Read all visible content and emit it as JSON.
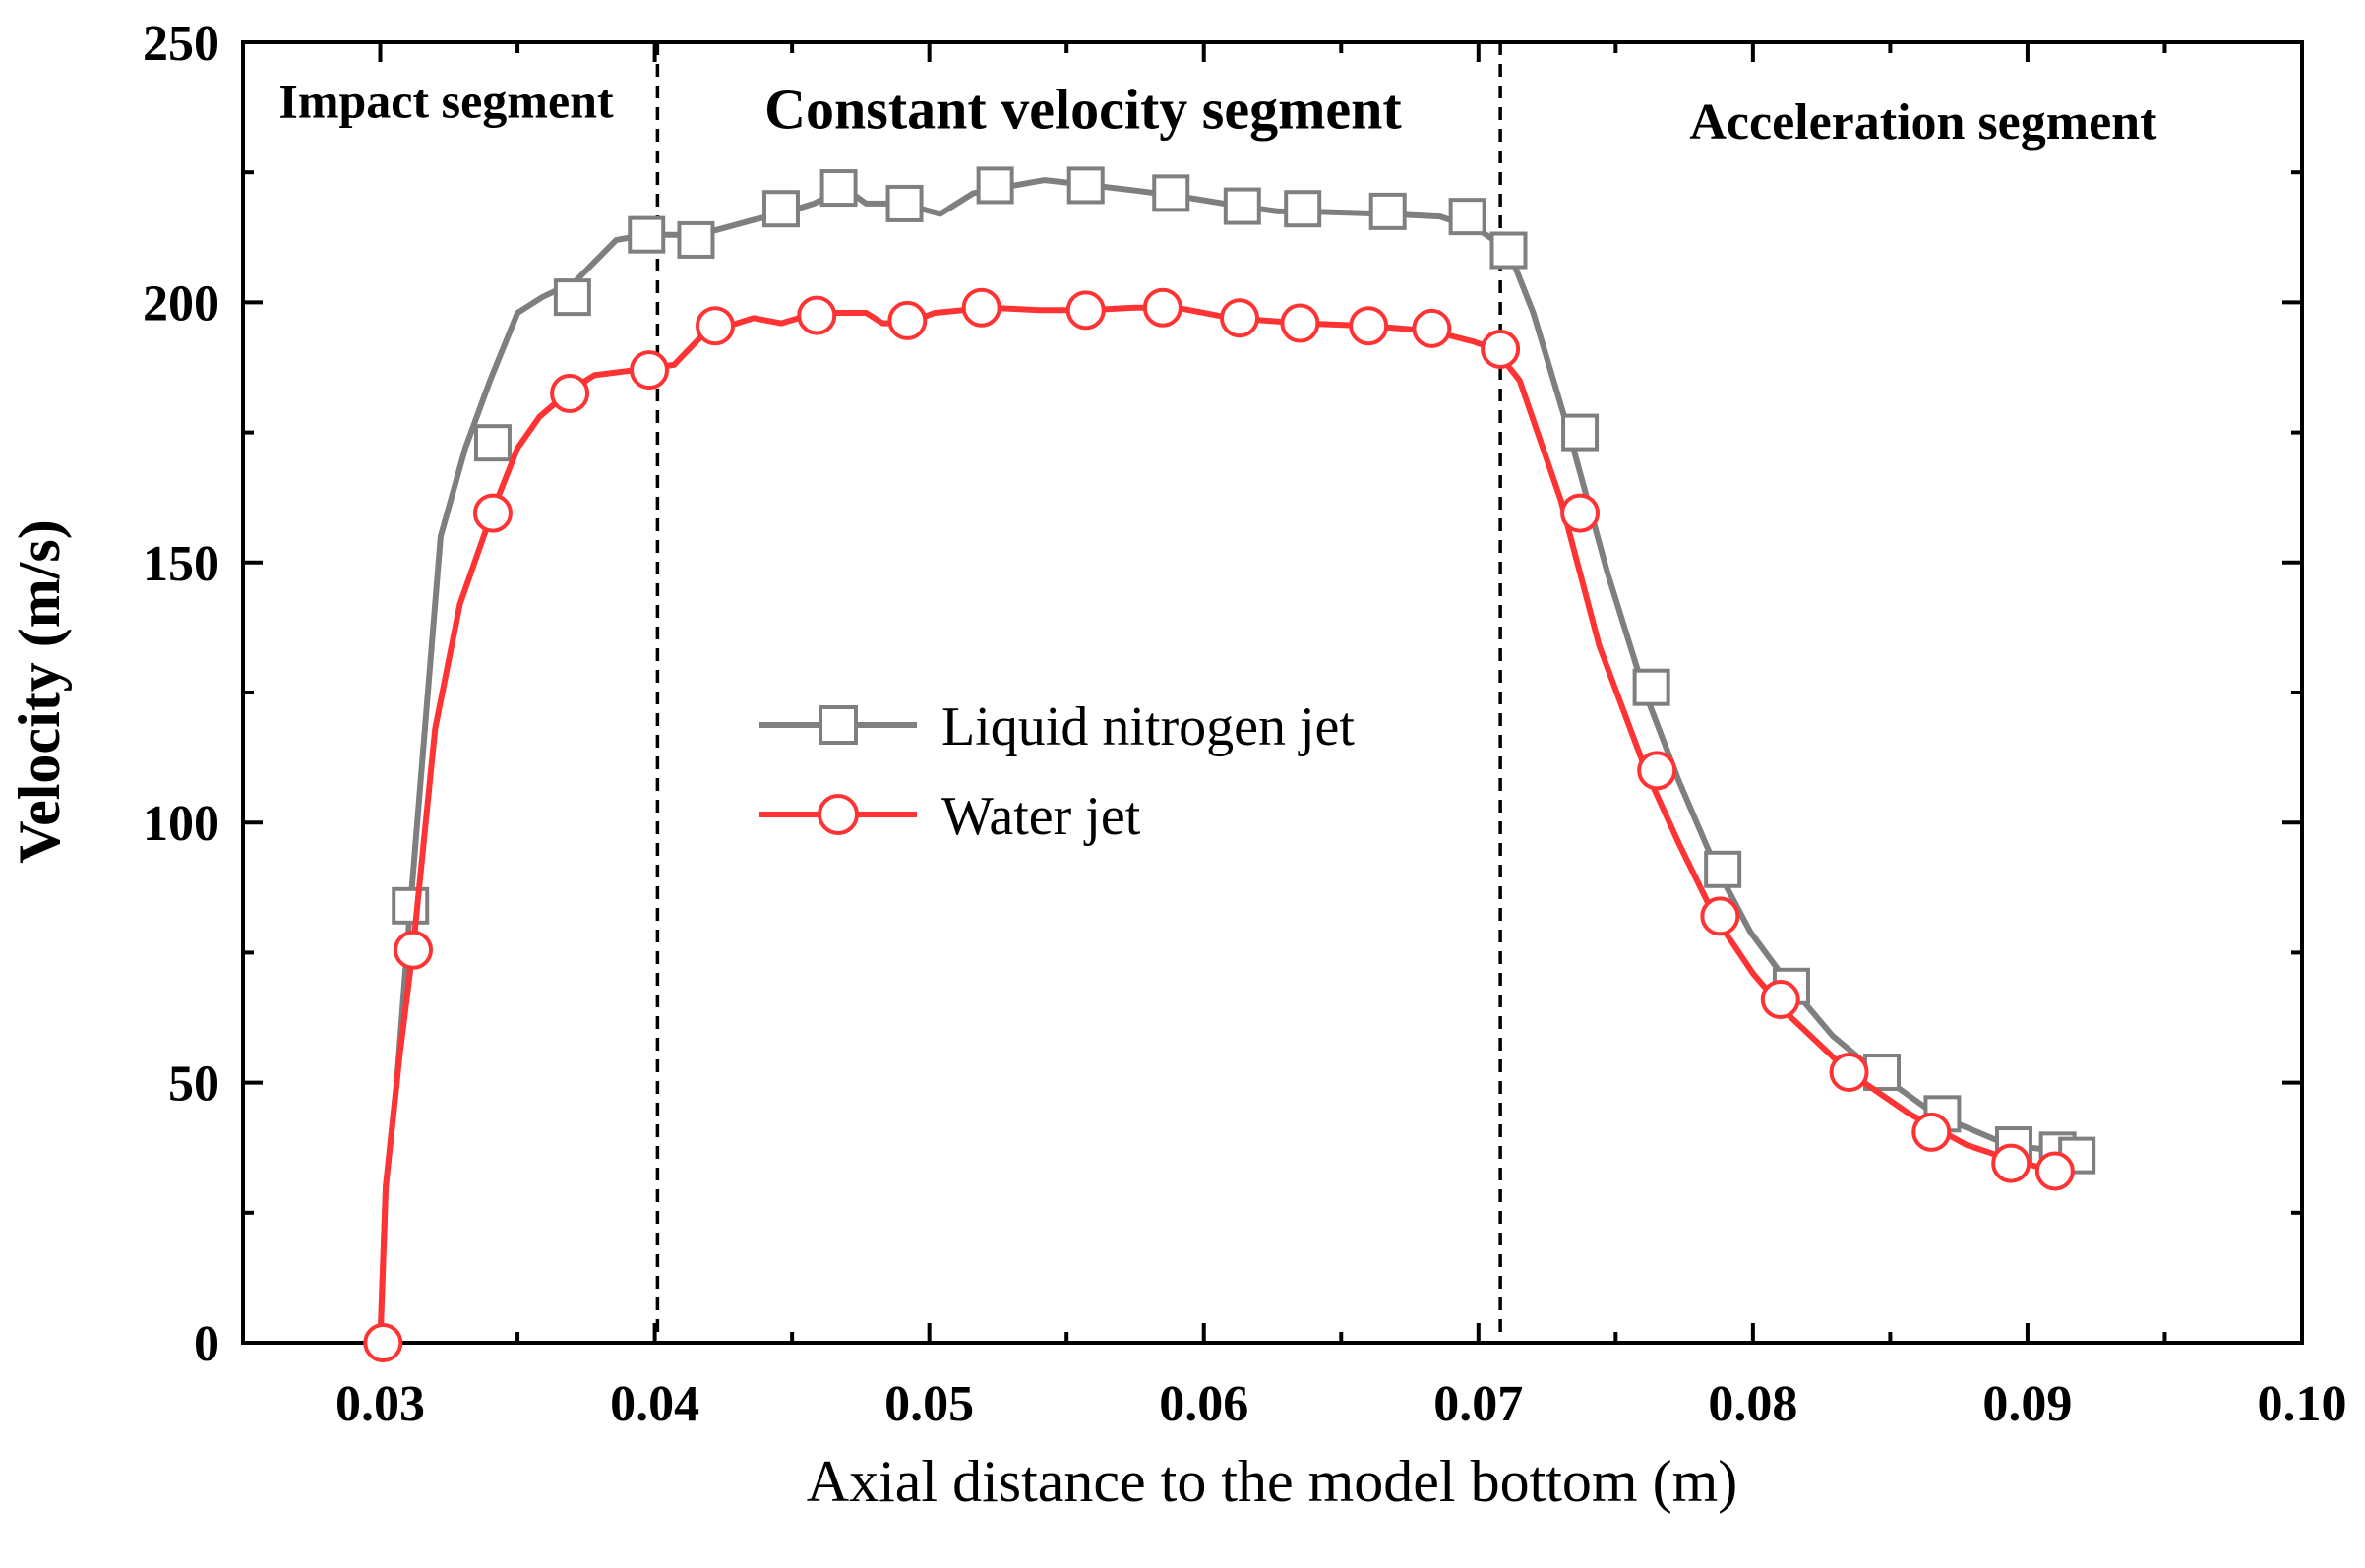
{
  "chart_data": {
    "type": "line",
    "title": "",
    "xlabel": "Axial distance to the model bottom (m)",
    "ylabel": "Velocity (m/s)",
    "xlim": [
      0.025,
      0.1
    ],
    "ylim": [
      0,
      250
    ],
    "xticks": [
      "0.03",
      "0.04",
      "0.05",
      "0.06",
      "0.07",
      "0.08",
      "0.09",
      "0.10"
    ],
    "xtick_values": [
      0.03,
      0.04,
      0.05,
      0.06,
      0.07,
      0.08,
      0.09,
      0.1
    ],
    "yticks": [
      "0",
      "50",
      "100",
      "150",
      "200",
      "250"
    ],
    "ytick_values": [
      0,
      50,
      100,
      150,
      200,
      250
    ],
    "grid": false,
    "legend_position": "center",
    "dividers": [
      0.0401,
      0.0708
    ],
    "segments": [
      {
        "label": "Impact segment",
        "x": 0.0324,
        "y": 235.5,
        "size": "small"
      },
      {
        "label": "Constant velocity segment",
        "x": 0.0556,
        "y": 233.5,
        "size": "large"
      },
      {
        "label": "Acceleration segment",
        "x": 0.0862,
        "y": 231.5,
        "size": "small"
      }
    ],
    "series": [
      {
        "name": "Liquid nitrogen jet",
        "color": "#7f7f7f",
        "marker": "square",
        "line": [
          [
            0.03,
            0.0
          ],
          [
            0.0302,
            30
          ],
          [
            0.0306,
            50
          ],
          [
            0.0311,
            84
          ],
          [
            0.0322,
            155
          ],
          [
            0.0331,
            172
          ],
          [
            0.034,
            185
          ],
          [
            0.035,
            198
          ],
          [
            0.0359,
            201
          ],
          [
            0.0371,
            204
          ],
          [
            0.0386,
            212
          ],
          [
            0.0397,
            213
          ],
          [
            0.0416,
            213
          ],
          [
            0.043,
            215
          ],
          [
            0.0437,
            216
          ],
          [
            0.0446,
            217
          ],
          [
            0.0458,
            219
          ],
          [
            0.0469,
            222
          ],
          [
            0.0477,
            219
          ],
          [
            0.049,
            219
          ],
          [
            0.0504,
            217
          ],
          [
            0.0516,
            221
          ],
          [
            0.0526,
            222
          ],
          [
            0.0542,
            223.5
          ],
          [
            0.0559,
            222.5
          ],
          [
            0.0575,
            221.5
          ],
          [
            0.059,
            220.5
          ],
          [
            0.0613,
            218.5
          ],
          [
            0.0627,
            217.5
          ],
          [
            0.0637,
            217.5
          ],
          [
            0.0667,
            217
          ],
          [
            0.0686,
            216.5
          ],
          [
            0.07,
            214
          ],
          [
            0.0711,
            210
          ],
          [
            0.072,
            198
          ],
          [
            0.0733,
            175
          ],
          [
            0.0747,
            148
          ],
          [
            0.076,
            126
          ],
          [
            0.0773,
            108
          ],
          [
            0.0786,
            92
          ],
          [
            0.0799,
            79
          ],
          [
            0.0813,
            69
          ],
          [
            0.0829,
            59
          ],
          [
            0.0845,
            52
          ],
          [
            0.0866,
            44
          ],
          [
            0.0893,
            38
          ],
          [
            0.0909,
            37
          ],
          [
            0.0915,
            36
          ]
        ],
        "markers": [
          [
            0.0311,
            84
          ],
          [
            0.0341,
            173
          ],
          [
            0.037,
            201
          ],
          [
            0.0397,
            213
          ],
          [
            0.0415,
            212
          ],
          [
            0.0446,
            218
          ],
          [
            0.0467,
            222
          ],
          [
            0.0491,
            219
          ],
          [
            0.0524,
            222.5
          ],
          [
            0.0557,
            222.5
          ],
          [
            0.0588,
            221
          ],
          [
            0.0614,
            218.5
          ],
          [
            0.0636,
            218
          ],
          [
            0.0667,
            217.5
          ],
          [
            0.0696,
            216.5
          ],
          [
            0.0711,
            210
          ],
          [
            0.0737,
            175
          ],
          [
            0.0763,
            126
          ],
          [
            0.0789,
            91
          ],
          [
            0.0814,
            68.5
          ],
          [
            0.0847,
            52
          ],
          [
            0.0869,
            44
          ],
          [
            0.0895,
            38
          ],
          [
            0.0911,
            37
          ],
          [
            0.0918,
            36
          ]
        ]
      },
      {
        "name": "Water jet",
        "color": "#ff3333",
        "marker": "circle",
        "line": [
          [
            0.03,
            0.0
          ],
          [
            0.0302,
            30
          ],
          [
            0.0307,
            55
          ],
          [
            0.0312,
            76
          ],
          [
            0.032,
            118
          ],
          [
            0.0329,
            142
          ],
          [
            0.0341,
            160
          ],
          [
            0.035,
            172
          ],
          [
            0.0358,
            178
          ],
          [
            0.0369,
            183
          ],
          [
            0.0378,
            186
          ],
          [
            0.0393,
            187
          ],
          [
            0.0407,
            188
          ],
          [
            0.0418,
            194
          ],
          [
            0.0436,
            197
          ],
          [
            0.0446,
            196
          ],
          [
            0.0459,
            198
          ],
          [
            0.0477,
            198
          ],
          [
            0.0483,
            196
          ],
          [
            0.0492,
            196
          ],
          [
            0.0502,
            198
          ],
          [
            0.0522,
            199
          ],
          [
            0.054,
            198.5
          ],
          [
            0.0558,
            198.5
          ],
          [
            0.0575,
            199
          ],
          [
            0.059,
            199
          ],
          [
            0.061,
            197
          ],
          [
            0.0636,
            196
          ],
          [
            0.066,
            195.5
          ],
          [
            0.0683,
            194.5
          ],
          [
            0.0698,
            192.5
          ],
          [
            0.0706,
            191
          ],
          [
            0.0715,
            185
          ],
          [
            0.073,
            162
          ],
          [
            0.0744,
            134
          ],
          [
            0.0761,
            110
          ],
          [
            0.0773,
            96
          ],
          [
            0.0786,
            82
          ],
          [
            0.08,
            71
          ],
          [
            0.0813,
            63
          ],
          [
            0.0835,
            52
          ],
          [
            0.0857,
            44
          ],
          [
            0.0878,
            38
          ],
          [
            0.0895,
            35
          ],
          [
            0.091,
            33
          ],
          [
            0.0915,
            33
          ]
        ],
        "markers": [
          [
            0.0301,
            0.0
          ],
          [
            0.0312,
            75.5
          ],
          [
            0.0341,
            159.5
          ],
          [
            0.0369,
            182.5
          ],
          [
            0.0398,
            187
          ],
          [
            0.0422,
            195.5
          ],
          [
            0.0459,
            197.5
          ],
          [
            0.0492,
            196.5
          ],
          [
            0.0519,
            199
          ],
          [
            0.0557,
            198.5
          ],
          [
            0.0585,
            199
          ],
          [
            0.0613,
            197
          ],
          [
            0.0635,
            196
          ],
          [
            0.066,
            195.5
          ],
          [
            0.0683,
            195
          ],
          [
            0.0708,
            191
          ],
          [
            0.0737,
            159.5
          ],
          [
            0.0765,
            110
          ],
          [
            0.0788,
            82
          ],
          [
            0.081,
            66
          ],
          [
            0.0835,
            52
          ],
          [
            0.0865,
            40.5
          ],
          [
            0.0894,
            34.5
          ],
          [
            0.091,
            33
          ]
        ]
      }
    ]
  }
}
